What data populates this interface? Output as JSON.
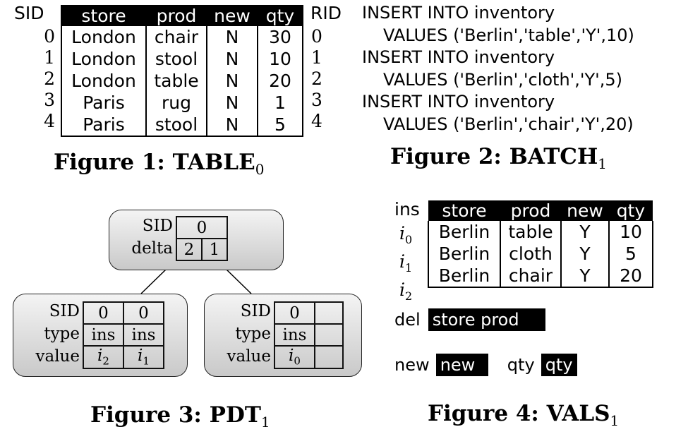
{
  "fig1": {
    "sid_label": "SID",
    "rid_label": "RID",
    "headers": [
      "store",
      "prod",
      "new",
      "qty"
    ],
    "sids": [
      "0",
      "1",
      "2",
      "3",
      "4"
    ],
    "rids": [
      "0",
      "1",
      "2",
      "3",
      "4"
    ],
    "rows": [
      [
        "London",
        "chair",
        "N",
        "30"
      ],
      [
        "London",
        "stool",
        "N",
        "10"
      ],
      [
        "London",
        "table",
        "N",
        "20"
      ],
      [
        "Paris",
        "rug",
        "N",
        "1"
      ],
      [
        "Paris",
        "stool",
        "N",
        "5"
      ]
    ],
    "caption": "Figure 1: TABLE",
    "caption_sub": "0"
  },
  "fig2": {
    "lines": [
      "INSERT INTO inventory",
      "VALUES ('Berlin','table','Y',10)",
      "INSERT INTO inventory",
      "VALUES ('Berlin','cloth','Y',5)",
      "INSERT INTO inventory",
      "VALUES ('Berlin','chair','Y',20)"
    ],
    "caption": "Figure 2: BATCH",
    "caption_sub": "1"
  },
  "fig3": {
    "root": {
      "sid_label": "SID",
      "delta_label": "delta",
      "sid": "0",
      "delta": [
        "2",
        "1"
      ]
    },
    "left": {
      "labels": [
        "SID",
        "type",
        "value"
      ],
      "sid": [
        "0",
        "0"
      ],
      "type": [
        "ins",
        "ins"
      ],
      "value": [
        {
          "v": "i",
          "s": "2"
        },
        {
          "v": "i",
          "s": "1"
        }
      ]
    },
    "right": {
      "labels": [
        "SID",
        "type",
        "value"
      ],
      "sid": [
        "0",
        ""
      ],
      "type": [
        "ins",
        ""
      ],
      "value": [
        {
          "v": "i",
          "s": "0"
        },
        {
          "v": "",
          "s": ""
        }
      ]
    },
    "caption": "Figure 3: PDT",
    "caption_sub": "1"
  },
  "fig4": {
    "ins_label": "ins",
    "headers": [
      "store",
      "prod",
      "new",
      "qty"
    ],
    "row_labels": [
      {
        "v": "i",
        "s": "0"
      },
      {
        "v": "i",
        "s": "1"
      },
      {
        "v": "i",
        "s": "2"
      }
    ],
    "rows": [
      [
        "Berlin",
        "table",
        "Y",
        "10"
      ],
      [
        "Berlin",
        "cloth",
        "Y",
        "5"
      ],
      [
        "Berlin",
        "chair",
        "Y",
        "20"
      ]
    ],
    "del_label": "del",
    "del_cols": "store prod",
    "new_label": "new",
    "new_col": "new",
    "qty_label": "qty",
    "qty_col": "qty",
    "caption": "Figure 4: VALS",
    "caption_sub": "1"
  }
}
